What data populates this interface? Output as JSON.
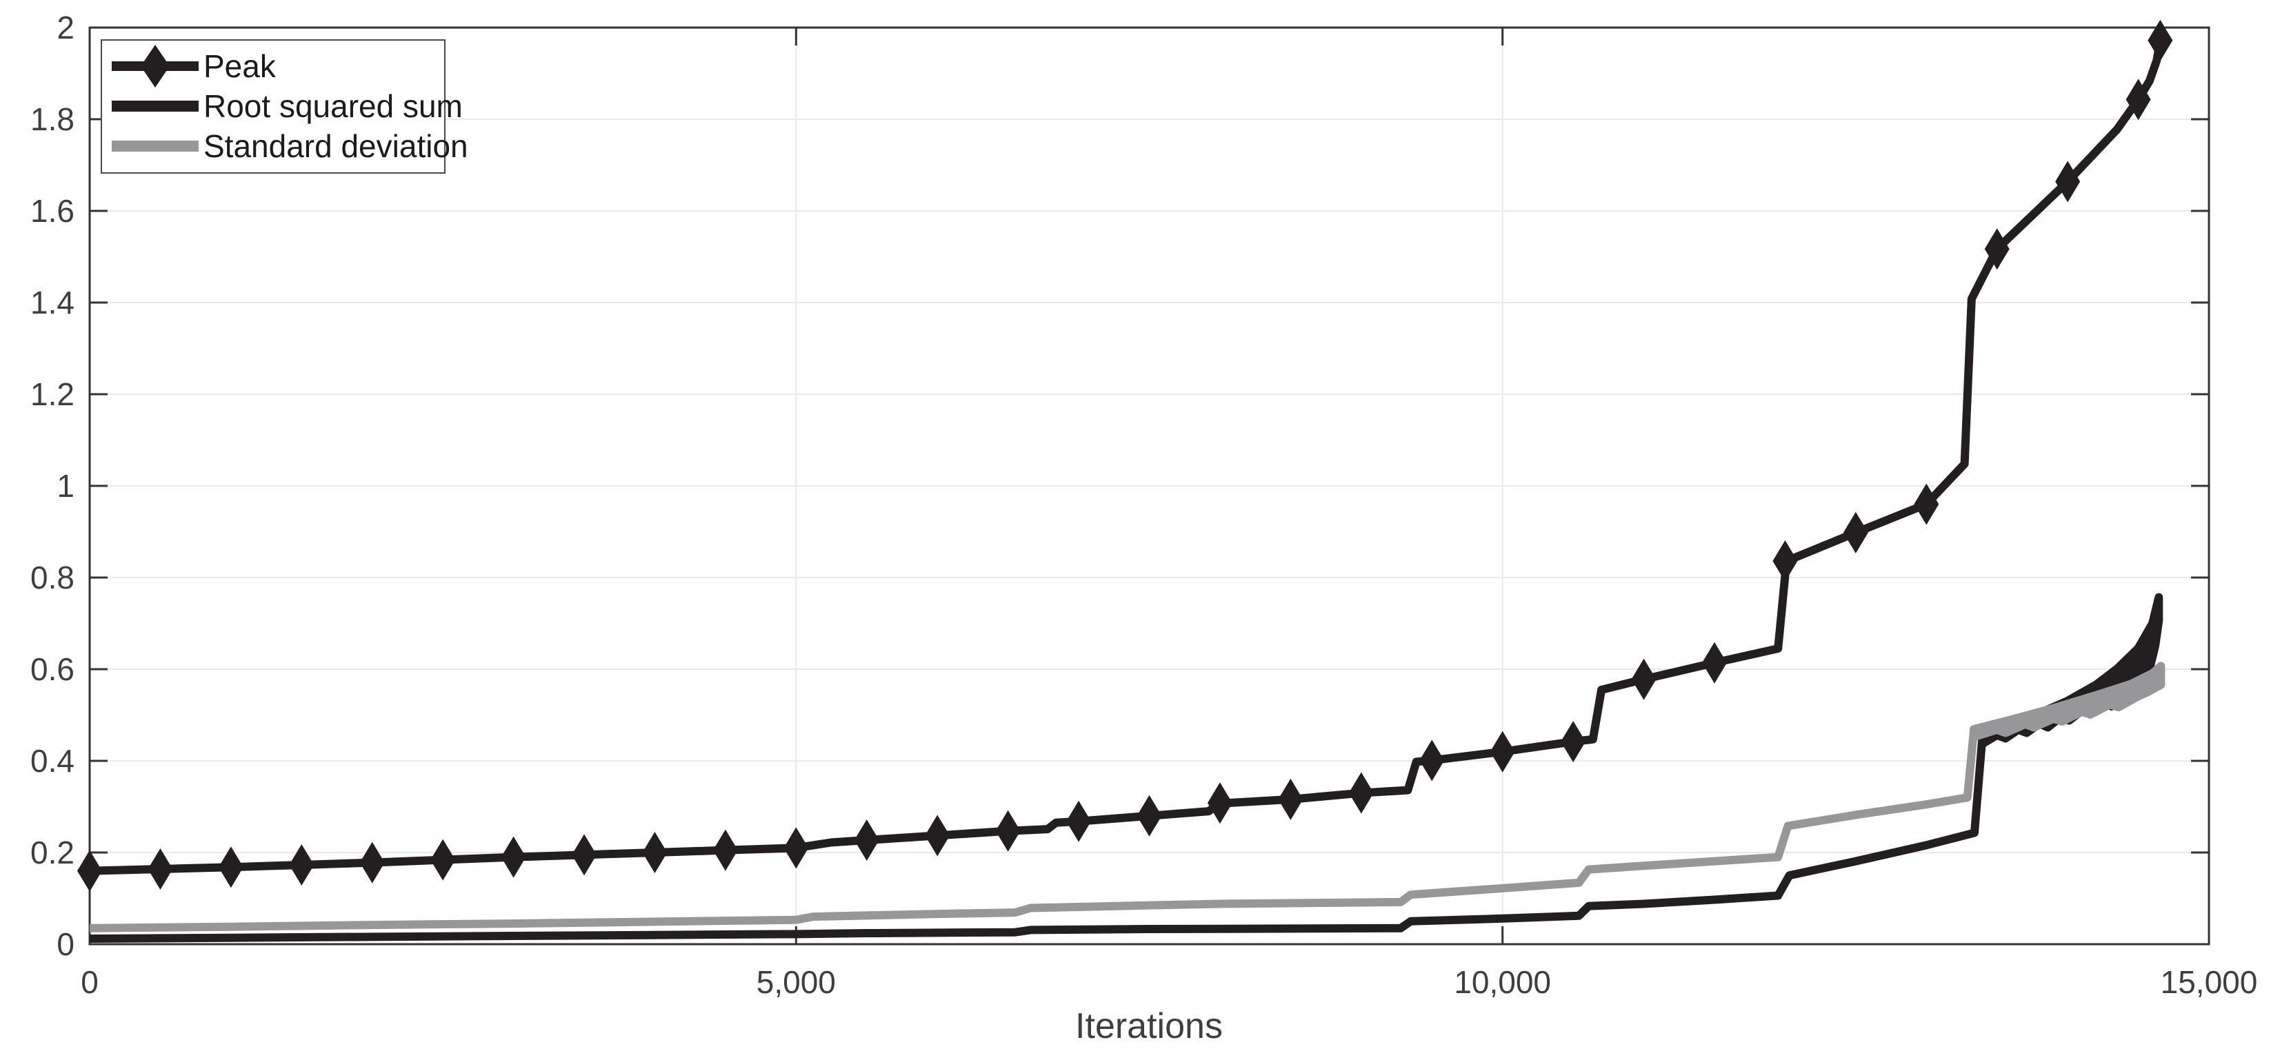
{
  "chart_data": {
    "type": "line",
    "title": "",
    "xlabel": "Iterations",
    "ylabel": "",
    "xlim": [
      0,
      15000
    ],
    "ylim": [
      0,
      2
    ],
    "xticks": [
      0,
      5000,
      10000,
      15000
    ],
    "xtick_labels": [
      "0",
      "5,000",
      "10,000",
      "15,000"
    ],
    "yticks": [
      0,
      0.2,
      0.4,
      0.6,
      0.8,
      1,
      1.2,
      1.4,
      1.6,
      1.8,
      2
    ],
    "ytick_labels": [
      "0",
      "0.2",
      "0.4",
      "0.6",
      "0.8",
      "1",
      "1.2",
      "1.4",
      "1.6",
      "1.8",
      "2"
    ],
    "grid": true,
    "legend_position": "top-left",
    "colors": {
      "black": "#231f20",
      "gray": "#97979a",
      "grid": "#e9e9e9",
      "frame": "#333333",
      "tick_text": "#3e3e3e",
      "legend_border": "#4a4a4a"
    },
    "series": [
      {
        "name": "Peak",
        "color": "#231f20",
        "style": "line+diamond-markers",
        "line_width": 12,
        "points": [
          [
            0,
            0.16
          ],
          [
            500,
            0.164
          ],
          [
            1000,
            0.168
          ],
          [
            1500,
            0.173
          ],
          [
            2000,
            0.178
          ],
          [
            2500,
            0.184
          ],
          [
            3000,
            0.19
          ],
          [
            3500,
            0.195
          ],
          [
            4000,
            0.2
          ],
          [
            4500,
            0.205
          ],
          [
            5000,
            0.21
          ],
          [
            5250,
            0.222
          ],
          [
            5500,
            0.227
          ],
          [
            6000,
            0.237
          ],
          [
            6500,
            0.247
          ],
          [
            6780,
            0.251
          ],
          [
            6840,
            0.265
          ],
          [
            7000,
            0.268
          ],
          [
            7500,
            0.28
          ],
          [
            7920,
            0.29
          ],
          [
            7990,
            0.307
          ],
          [
            8500,
            0.316
          ],
          [
            9000,
            0.33
          ],
          [
            9330,
            0.336
          ],
          [
            9390,
            0.398
          ],
          [
            9500,
            0.401
          ],
          [
            10000,
            0.42
          ],
          [
            10500,
            0.442
          ],
          [
            10640,
            0.447
          ],
          [
            10700,
            0.555
          ],
          [
            11000,
            0.578
          ],
          [
            11500,
            0.614
          ],
          [
            11950,
            0.645
          ],
          [
            12010,
            0.836
          ],
          [
            12500,
            0.898
          ],
          [
            13000,
            0.96
          ],
          [
            13270,
            1.048
          ],
          [
            13320,
            1.408
          ],
          [
            13500,
            1.517
          ],
          [
            14000,
            1.664
          ],
          [
            14350,
            1.778
          ],
          [
            14500,
            1.843
          ],
          [
            14580,
            1.884
          ],
          [
            14630,
            1.928
          ],
          [
            14655,
            1.972
          ]
        ],
        "markers": [
          [
            0,
            0.16
          ],
          [
            500,
            0.164
          ],
          [
            1000,
            0.168
          ],
          [
            1500,
            0.173
          ],
          [
            2000,
            0.178
          ],
          [
            2500,
            0.184
          ],
          [
            3000,
            0.19
          ],
          [
            3500,
            0.195
          ],
          [
            4000,
            0.2
          ],
          [
            4500,
            0.205
          ],
          [
            5000,
            0.21
          ],
          [
            5500,
            0.227
          ],
          [
            6000,
            0.237
          ],
          [
            6500,
            0.247
          ],
          [
            7000,
            0.268
          ],
          [
            7500,
            0.28
          ],
          [
            8000,
            0.308
          ],
          [
            8500,
            0.316
          ],
          [
            9000,
            0.33
          ],
          [
            9500,
            0.401
          ],
          [
            10000,
            0.42
          ],
          [
            10500,
            0.442
          ],
          [
            11000,
            0.578
          ],
          [
            11500,
            0.614
          ],
          [
            12000,
            0.836
          ],
          [
            12500,
            0.898
          ],
          [
            13000,
            0.96
          ],
          [
            13500,
            1.517
          ],
          [
            14000,
            1.664
          ],
          [
            14500,
            1.843
          ],
          [
            14655,
            1.972
          ]
        ]
      },
      {
        "name": "Root squared sum",
        "color": "#231f20",
        "style": "line",
        "line_width": 12,
        "points": [
          [
            0,
            0.012
          ],
          [
            1000,
            0.014
          ],
          [
            2000,
            0.016
          ],
          [
            3000,
            0.018
          ],
          [
            4000,
            0.02
          ],
          [
            5000,
            0.022
          ],
          [
            5500,
            0.024
          ],
          [
            6550,
            0.026
          ],
          [
            6660,
            0.031
          ],
          [
            7500,
            0.033
          ],
          [
            8500,
            0.034
          ],
          [
            9280,
            0.035
          ],
          [
            9350,
            0.05
          ],
          [
            10000,
            0.056
          ],
          [
            10540,
            0.062
          ],
          [
            10610,
            0.083
          ],
          [
            11000,
            0.088
          ],
          [
            11500,
            0.097
          ],
          [
            11950,
            0.106
          ],
          [
            12030,
            0.15
          ],
          [
            12500,
            0.181
          ],
          [
            13000,
            0.216
          ],
          [
            13340,
            0.243
          ],
          [
            13395,
            0.447
          ]
        ],
        "envelope": {
          "top": [
            [
              13395,
              0.452
            ],
            [
              13600,
              0.482
            ],
            [
              13800,
              0.504
            ],
            [
              14000,
              0.531
            ],
            [
              14200,
              0.566
            ],
            [
              14350,
              0.601
            ],
            [
              14500,
              0.646
            ],
            [
              14600,
              0.7
            ],
            [
              14645,
              0.757
            ]
          ],
          "bottom": [
            [
              13395,
              0.437
            ],
            [
              13500,
              0.456
            ],
            [
              13560,
              0.449
            ],
            [
              13650,
              0.468
            ],
            [
              13710,
              0.461
            ],
            [
              13800,
              0.481
            ],
            [
              13860,
              0.473
            ],
            [
              13950,
              0.495
            ],
            [
              14010,
              0.488
            ],
            [
              14100,
              0.509
            ],
            [
              14160,
              0.502
            ],
            [
              14250,
              0.526
            ],
            [
              14310,
              0.519
            ],
            [
              14400,
              0.549
            ],
            [
              14460,
              0.541
            ],
            [
              14530,
              0.574
            ],
            [
              14580,
              0.601
            ],
            [
              14620,
              0.652
            ],
            [
              14645,
              0.706
            ]
          ]
        }
      },
      {
        "name": "Standard deviation",
        "color": "#97979a",
        "style": "line",
        "line_width": 12,
        "points": [
          [
            0,
            0.035
          ],
          [
            1000,
            0.038
          ],
          [
            2000,
            0.042
          ],
          [
            3000,
            0.045
          ],
          [
            4000,
            0.049
          ],
          [
            5000,
            0.053
          ],
          [
            5120,
            0.06
          ],
          [
            6000,
            0.066
          ],
          [
            6550,
            0.069
          ],
          [
            6660,
            0.079
          ],
          [
            7400,
            0.084
          ],
          [
            8000,
            0.088
          ],
          [
            9000,
            0.091
          ],
          [
            9280,
            0.092
          ],
          [
            9350,
            0.108
          ],
          [
            10000,
            0.122
          ],
          [
            10540,
            0.134
          ],
          [
            10610,
            0.163
          ],
          [
            11000,
            0.171
          ],
          [
            11500,
            0.181
          ],
          [
            11950,
            0.19
          ],
          [
            12020,
            0.258
          ],
          [
            12500,
            0.282
          ],
          [
            13000,
            0.305
          ],
          [
            13290,
            0.32
          ],
          [
            13335,
            0.464
          ]
        ],
        "envelope": {
          "top": [
            [
              13335,
              0.469
            ],
            [
              13600,
              0.49
            ],
            [
              13900,
              0.515
            ],
            [
              14200,
              0.543
            ],
            [
              14450,
              0.568
            ],
            [
              14600,
              0.591
            ],
            [
              14660,
              0.607
            ]
          ],
          "bottom": [
            [
              13335,
              0.452
            ],
            [
              13500,
              0.468
            ],
            [
              13560,
              0.461
            ],
            [
              13700,
              0.48
            ],
            [
              13760,
              0.473
            ],
            [
              13900,
              0.492
            ],
            [
              13960,
              0.486
            ],
            [
              14100,
              0.507
            ],
            [
              14160,
              0.501
            ],
            [
              14300,
              0.523
            ],
            [
              14360,
              0.517
            ],
            [
              14500,
              0.541
            ],
            [
              14560,
              0.549
            ],
            [
              14660,
              0.566
            ]
          ]
        }
      }
    ]
  }
}
